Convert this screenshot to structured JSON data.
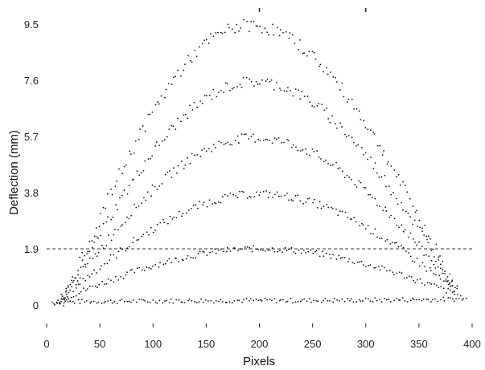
{
  "chart_data": {
    "type": "scatter",
    "title": "",
    "xlabel": "Pixels",
    "ylabel": "Deflection (mm)",
    "xlim": [
      0,
      400
    ],
    "ylim": [
      0,
      9.5
    ],
    "xticks": [
      0,
      50,
      100,
      150,
      200,
      250,
      300,
      350,
      400
    ],
    "xtick_labels": [
      "0",
      "50",
      "100",
      "150",
      "200",
      "250",
      "300",
      "350",
      "400"
    ],
    "yticks": [
      0,
      1.9,
      3.8,
      5.7,
      7.6,
      9.5
    ],
    "ytick_labels": [
      "0",
      "1.9",
      "3.8",
      "5.7",
      "7.6",
      "9.5"
    ],
    "grid": false,
    "reference_line": {
      "y": 1.9,
      "style": "dashed"
    },
    "marker_color": "#111111",
    "series": [
      {
        "peak": 0.15,
        "peak_x": 200,
        "start_x": 5,
        "end_x": 395,
        "end_y": 0.2
      },
      {
        "peak": 1.9,
        "peak_x": 200,
        "start_x": 8,
        "end_x": 390,
        "end_y": 0.3
      },
      {
        "peak": 3.75,
        "peak_x": 200,
        "start_x": 10,
        "end_x": 388,
        "end_y": 0.4
      },
      {
        "peak": 5.65,
        "peak_x": 195,
        "start_x": 12,
        "end_x": 386,
        "end_y": 0.5
      },
      {
        "peak": 7.55,
        "peak_x": 195,
        "start_x": 14,
        "end_x": 384,
        "end_y": 0.6
      },
      {
        "peak": 9.45,
        "peak_x": 190,
        "start_x": 16,
        "end_x": 382,
        "end_y": 0.7
      }
    ]
  }
}
